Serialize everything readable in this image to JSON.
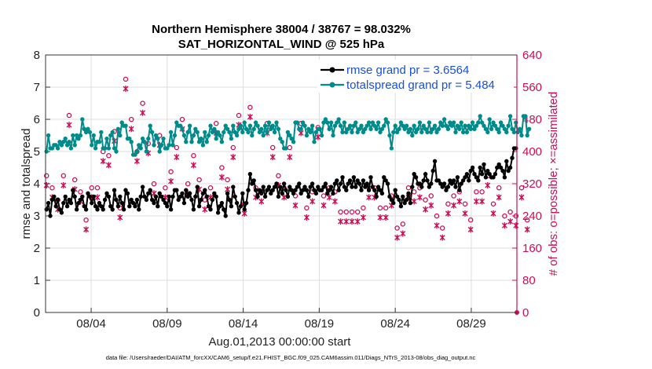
{
  "chart_data": {
    "type": "line",
    "title_line1": "Northern Hemisphere 38004 / 38767 = 98.032%",
    "title_line2": "SAT_HORIZONTAL_WIND @ 525 hPa",
    "ylabel_left": "rmse and totalspread",
    "ylabel_right": "# of obs: o=possible; ×=assimilated",
    "xlabel": "Aug.01,2013 00:00:00 start",
    "footnote": "data file: /Users/raeder/DAI/ATM_forcXX/CAM6_setup/f.e21.FHIST_BGC.f09_025.CAM6assim.011/Diags_NTrS_2013-08/obs_diag_output.nc",
    "colors": {
      "rmse": "#000000",
      "spread": "#008b8b",
      "obs": "#cc0d55",
      "legend_text": "#1a4fd6"
    },
    "x_range_days": [
      0.5,
      31.5
    ],
    "ylim_left": [
      0,
      8
    ],
    "ylim_right": [
      0,
      640
    ],
    "left_ticks": [
      "0",
      "1",
      "2",
      "3",
      "4",
      "5",
      "6",
      "7",
      "8"
    ],
    "right_ticks": [
      "0",
      "80",
      "160",
      "240",
      "320",
      "400",
      "480",
      "560",
      "640"
    ],
    "x_ticks": [
      {
        "day": 3.5,
        "label": "08/04"
      },
      {
        "day": 8.5,
        "label": "08/09"
      },
      {
        "day": 13.5,
        "label": "08/14"
      },
      {
        "day": 18.5,
        "label": "08/19"
      },
      {
        "day": 23.5,
        "label": "08/24"
      },
      {
        "day": 28.5,
        "label": "08/29"
      }
    ],
    "legend": [
      {
        "key": "rmse",
        "label": "rmse grand pr = 3.6564"
      },
      {
        "key": "spread",
        "label": "totalspread grand pr = 5.484"
      }
    ],
    "series": [
      {
        "name": "rmse",
        "values": [
          3.2,
          3.4,
          3.0,
          3.5,
          3.6,
          3.3,
          3.5,
          3.2,
          3.1,
          3.4,
          3.6,
          3.3,
          3.5,
          3.4,
          3.8,
          3.6,
          3.2,
          3.4,
          3.5,
          3.6,
          3.3,
          3.2,
          3.7,
          3.6,
          3.4,
          3.6,
          3.3,
          3.2,
          3.4,
          3.3,
          3.2,
          3.5,
          3.7,
          3.6,
          3.3,
          3.2,
          3.8,
          3.5,
          3.3,
          3.6,
          3.4,
          3.2,
          3.8,
          3.7,
          3.3,
          3.5,
          3.4,
          3.3,
          3.5,
          3.2,
          3.6,
          3.9,
          3.6,
          3.5,
          3.7,
          3.8,
          3.5,
          3.4,
          3.6,
          3.3,
          3.7,
          3.6,
          3.5,
          3.4,
          3.3,
          3.6,
          3.2,
          3.6,
          3.8,
          3.8,
          3.5,
          3.6,
          3.7,
          3.4,
          3.8,
          3.6,
          3.7,
          3.5,
          3.2,
          3.6,
          3.9,
          3.3,
          3.5,
          3.7,
          3.8,
          3.6,
          3.3,
          3.2,
          3.5,
          3.7,
          3.6,
          3.1,
          3.3,
          3.4,
          3.2,
          3.0,
          3.7,
          3.5,
          3.3,
          3.9,
          3.6,
          3.4,
          3.1,
          3.3,
          3.7,
          3.2,
          3.4,
          3.8,
          4.3,
          4.0,
          4.1,
          3.8,
          3.6,
          3.8,
          3.7,
          3.9,
          3.6,
          3.8,
          3.9,
          3.7,
          3.8,
          3.9,
          4.0,
          3.6,
          3.9,
          3.7,
          4.0,
          3.8,
          3.6,
          3.9,
          3.8,
          3.7,
          3.8,
          3.9,
          4.0,
          3.7,
          3.8,
          3.9,
          3.8,
          3.6,
          3.9,
          4.0,
          3.8,
          3.7,
          3.9,
          3.8,
          3.8,
          3.9,
          4.0,
          3.7,
          3.8,
          3.9,
          3.7,
          4.0,
          4.1,
          3.8,
          4.0,
          4.2,
          3.9,
          3.8,
          4.0,
          4.1,
          3.9,
          4.2,
          3.9,
          4.1,
          4.0,
          3.8,
          4.1,
          3.9,
          4.0,
          3.8,
          4.2,
          3.9,
          3.8,
          3.6,
          3.9,
          3.8,
          3.7,
          4.2,
          4.1,
          4.0,
          3.6,
          3.5,
          3.4,
          3.8,
          3.6,
          3.5,
          3.3,
          3.6,
          3.4,
          3.5,
          3.7,
          3.4,
          3.9,
          4.3,
          4.2,
          4.0,
          4.0,
          3.9,
          4.1,
          4.3,
          4.1,
          3.9,
          4.0,
          4.4,
          4.7,
          4.1,
          4.1,
          4.0,
          3.9,
          4.0,
          3.8,
          3.9,
          4.1,
          4.0,
          4.1,
          3.9,
          4.2,
          3.8,
          4.0,
          4.1,
          4.2,
          4.3,
          4.1,
          4.4,
          4.5,
          4.3,
          4.2,
          4.1,
          4.5,
          4.3,
          4.6,
          4.2,
          4.4,
          4.3,
          4.2,
          4.2,
          4.3,
          4.5,
          4.6,
          4.5,
          4.4,
          4.2,
          4.7,
          4.4,
          4.5,
          4.8,
          5.1,
          5.1
        ]
      },
      {
        "name": "totalspread",
        "values": [
          5.0,
          5.5,
          5.1,
          5.1,
          5.2,
          5.2,
          5.1,
          5.3,
          5.2,
          5.3,
          5.4,
          5.2,
          5.3,
          5.1,
          5.5,
          5.2,
          5.5,
          5.4,
          5.5,
          6.0,
          5.7,
          5.6,
          5.7,
          5.6,
          5.2,
          5.5,
          5.1,
          5.3,
          5.3,
          5.6,
          5.1,
          5.1,
          5.4,
          5.1,
          5.5,
          5.6,
          5.1,
          5.0,
          5.7,
          5.5,
          5.9,
          5.8,
          5.8,
          5.4,
          5.4,
          5.3,
          4.9,
          4.9,
          5.0,
          5.2,
          5.1,
          5.4,
          5.3,
          5.0,
          5.4,
          5.8,
          5.6,
          5.2,
          5.5,
          5.4,
          5.0,
          5.2,
          5.4,
          5.1,
          5.1,
          5.2,
          5.6,
          5.2,
          5.5,
          5.9,
          5.8,
          5.8,
          5.7,
          5.5,
          5.3,
          5.6,
          5.8,
          5.3,
          5.5,
          5.7,
          5.6,
          5.3,
          5.4,
          5.2,
          5.6,
          5.3,
          5.5,
          5.8,
          5.6,
          5.7,
          5.4,
          5.6,
          5.5,
          5.3,
          5.6,
          5.8,
          5.7,
          5.6,
          5.4,
          5.8,
          5.6,
          5.5,
          5.7,
          5.8,
          5.6,
          5.9,
          5.7,
          5.6,
          5.8,
          5.5,
          5.7,
          5.9,
          5.8,
          5.6,
          5.7,
          5.5,
          5.8,
          5.6,
          5.9,
          5.7,
          5.8,
          5.6,
          5.9,
          5.7,
          5.4,
          5.3,
          5.1,
          5.1,
          5.6,
          5.5,
          5.4,
          5.3,
          5.9,
          5.9,
          5.7,
          5.7,
          5.9,
          5.8,
          5.5,
          5.7,
          5.6,
          5.8,
          5.3,
          5.6,
          5.7,
          5.7,
          5.5,
          5.9,
          6.0,
          5.9,
          5.7,
          5.9,
          5.5,
          5.8,
          5.9,
          6.0,
          5.8,
          5.6,
          5.9,
          5.6,
          5.7,
          5.8,
          5.6,
          5.8,
          5.9,
          5.6,
          5.7,
          5.8,
          5.6,
          5.7,
          5.8,
          5.9,
          5.7,
          5.9,
          5.8,
          5.7,
          5.9,
          5.6,
          5.7,
          5.8,
          6.0,
          5.9,
          5.5,
          5.1,
          5.6,
          5.8,
          5.6,
          5.7,
          5.9,
          5.8,
          5.7,
          5.8,
          5.6,
          5.7,
          5.5,
          5.8,
          5.6,
          5.7,
          5.9,
          5.6,
          5.8,
          5.7,
          5.6,
          5.9,
          5.6,
          5.7,
          5.8,
          5.6,
          5.7,
          5.9,
          5.8,
          6.0,
          5.8,
          5.7,
          5.9,
          5.8,
          5.9,
          5.6,
          5.8,
          5.7,
          5.9,
          5.6,
          5.8,
          5.6,
          5.8,
          5.7,
          5.9,
          5.7,
          5.8,
          5.9,
          6.1,
          5.9,
          5.8,
          5.7,
          5.6,
          6.0,
          5.7,
          5.9,
          5.8,
          5.7,
          5.6,
          5.9,
          5.8,
          5.7,
          5.6,
          5.8,
          6.1,
          5.7,
          5.6,
          5.9,
          5.6,
          5.7,
          5.5,
          6.1,
          6.1,
          5.5,
          5.7
        ]
      },
      {
        "name": "obs_possible",
        "values": [
          330,
          430,
          430,
          300,
          320,
          270,
          270,
          330,
          330,
          330,
          300,
          320,
          480,
          400,
          400,
          320,
          410,
          330,
          290,
          300,
          220,
          220,
          330,
          300,
          300,
          330,
          250,
          300,
          270,
          300,
          390,
          320,
          370,
          380,
          400,
          300,
          440,
          440,
          300,
          250,
          300,
          270,
          570,
          550,
          400,
          470,
          480,
          300,
          390,
          350,
          510,
          510,
          270,
          270,
          410,
          410,
          310,
          310,
          430,
          420,
          430,
          380,
          290,
          300,
          410,
          400,
          340,
          520,
          520,
          400,
          460,
          460,
          470,
          470,
          300,
          310,
          300,
          450,
          380,
          350,
          320,
          320,
          300,
          280,
          270,
          280,
          300,
          300,
          300,
          490,
          460,
          420,
          370,
          350,
          370,
          350,
          320,
          300,
          390,
          400,
          330,
          300,
          480,
          430,
          400,
          260,
          260,
          500,
          500,
          370,
          360,
          300,
          290,
          270,
          290,
          310,
          350,
          460,
          450,
          430,
          400,
          300,
          280,
          330,
          330,
          270,
          300,
          320,
          400,
          400,
          400,
          300,
          280,
          280,
          290,
          460,
          460,
          260,
          250,
          300,
          270,
          290,
          330,
          300,
          450,
          460,
          470,
          280,
          270,
          310,
          300,
          320,
          290,
          290,
          280,
          290,
          240,
          220,
          230,
          240,
          220,
          230,
          240,
          220,
          230,
          240,
          220,
          250,
          250,
          260,
          290,
          300,
          280,
          270,
          300,
          280,
          260,
          250,
          280,
          270,
          250,
          290,
          260,
          280,
          220,
          190,
          200,
          220,
          190,
          210,
          260,
          280,
          300,
          270,
          270,
          290,
          330,
          310,
          300,
          290,
          300,
          270,
          260,
          300,
          280,
          240,
          240,
          230,
          250,
          220,
          200,
          230,
          270,
          260,
          270,
          250,
          280,
          300,
          280,
          290,
          280,
          290,
          260,
          270,
          240,
          220,
          200,
          270,
          290,
          270,
          280,
          290,
          300,
          330,
          330,
          290,
          280,
          260,
          280,
          270,
          300,
          240,
          220,
          230,
          270,
          240,
          240,
          250,
          220,
          230,
          250,
          220,
          300,
          240,
          200,
          220,
          310
        ]
      },
      {
        "name": "obs_assimilated",
        "values": [
          320,
          420,
          420,
          290,
          310,
          260,
          260,
          320,
          320,
          320,
          290,
          310,
          470,
          390,
          390,
          310,
          400,
          320,
          280,
          290,
          210,
          210,
          320,
          290,
          290,
          320,
          240,
          290,
          260,
          290,
          380,
          310,
          360,
          370,
          390,
          290,
          430,
          430,
          290,
          240,
          290,
          260,
          560,
          540,
          390,
          460,
          470,
          290,
          380,
          340,
          500,
          500,
          260,
          260,
          400,
          400,
          300,
          300,
          420,
          410,
          420,
          370,
          280,
          290,
          400,
          390,
          330,
          510,
          510,
          390,
          450,
          450,
          460,
          460,
          290,
          300,
          290,
          440,
          370,
          340,
          310,
          310,
          290,
          270,
          260,
          270,
          290,
          290,
          290,
          480,
          450,
          410,
          360,
          340,
          360,
          340,
          310,
          290,
          380,
          390,
          320,
          290,
          470,
          420,
          390,
          250,
          250,
          490,
          490,
          360,
          350,
          290,
          280,
          260,
          280,
          300,
          340,
          450,
          440,
          420,
          390,
          290,
          270,
          320,
          320,
          260,
          290,
          310,
          390,
          390,
          390,
          290,
          270,
          270,
          280,
          450,
          450,
          250,
          240,
          290,
          260,
          280,
          320,
          290,
          440,
          450,
          460,
          270,
          260,
          300,
          290,
          310,
          280,
          280,
          270,
          280,
          230,
          210,
          220,
          230,
          210,
          220,
          230,
          210,
          220,
          230,
          210,
          240,
          240,
          250,
          280,
          290,
          270,
          260,
          290,
          270,
          250,
          240,
          270,
          260,
          240,
          280,
          250,
          270,
          210,
          180,
          190,
          210,
          180,
          200,
          250,
          270,
          290,
          260,
          260,
          280,
          320,
          300,
          290,
          280,
          290,
          260,
          250,
          290,
          270,
          230,
          230,
          220,
          240,
          210,
          190,
          220,
          260,
          250,
          260,
          240,
          270,
          290,
          270,
          280,
          270,
          280,
          250,
          260,
          230,
          210,
          190,
          260,
          280,
          260,
          270,
          280,
          290,
          320,
          320,
          280,
          270,
          250,
          270,
          260,
          290,
          230,
          210,
          220,
          260,
          230,
          230,
          240,
          210,
          220,
          240,
          210,
          290,
          230,
          190,
          210,
          300
        ]
      }
    ]
  }
}
